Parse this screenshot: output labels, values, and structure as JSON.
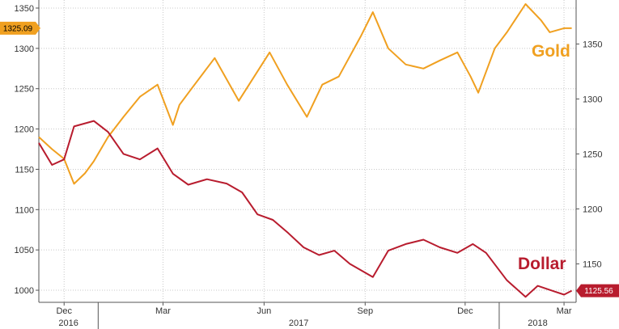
{
  "chart_data": {
    "type": "line",
    "x_ticks": [
      "Dec",
      "Mar",
      "Jun",
      "Sep",
      "Dec",
      "Mar"
    ],
    "x_years": [
      "2016",
      "2017",
      "2018"
    ],
    "left_axis": {
      "ticks": [
        "1350",
        "1300",
        "1250",
        "1200",
        "1150",
        "1100",
        "1050",
        "1000"
      ],
      "ylim": [
        985,
        1360
      ]
    },
    "right_axis": {
      "ticks": [
        "1350",
        "1300",
        "1250",
        "1200",
        "1150"
      ],
      "ylim": [
        1115,
        1390
      ]
    },
    "grid": true,
    "series": [
      {
        "name": "Gold",
        "axis": "left",
        "color": "#f0a020",
        "last_value_tag": "1325.09",
        "x": [
          "2016-11-08",
          "2016-11-20",
          "2016-12-01",
          "2016-12-10",
          "2016-12-20",
          "2016-12-28",
          "2017-01-10",
          "2017-01-24",
          "2017-02-08",
          "2017-02-24",
          "2017-03-10",
          "2017-03-16",
          "2017-03-27",
          "2017-04-17",
          "2017-05-09",
          "2017-06-06",
          "2017-06-22",
          "2017-07-10",
          "2017-07-24",
          "2017-08-08",
          "2017-08-28",
          "2017-09-08",
          "2017-09-22",
          "2017-10-08",
          "2017-10-24",
          "2017-11-08",
          "2017-11-24",
          "2017-12-06",
          "2017-12-13",
          "2017-12-28",
          "2018-01-08",
          "2018-01-25",
          "2018-02-08",
          "2018-02-16",
          "2018-03-01",
          "2018-03-08"
        ],
        "values": [
          1190,
          1175,
          1163,
          1132,
          1145,
          1160,
          1190,
          1215,
          1240,
          1255,
          1205,
          1230,
          1250,
          1288,
          1235,
          1295,
          1255,
          1215,
          1255,
          1265,
          1315,
          1345,
          1300,
          1280,
          1275,
          1285,
          1295,
          1265,
          1245,
          1300,
          1320,
          1355,
          1335,
          1320,
          1325,
          1325
        ]
      },
      {
        "name": "Dollar",
        "axis": "right",
        "color": "#b81c2e",
        "last_value_tag": "1125.56",
        "x": [
          "2016-11-08",
          "2016-11-20",
          "2016-12-01",
          "2016-12-10",
          "2016-12-28",
          "2017-01-10",
          "2017-01-24",
          "2017-02-08",
          "2017-02-24",
          "2017-03-10",
          "2017-03-24",
          "2017-04-10",
          "2017-04-28",
          "2017-05-12",
          "2017-05-26",
          "2017-06-09",
          "2017-06-23",
          "2017-07-07",
          "2017-07-21",
          "2017-08-04",
          "2017-08-18",
          "2017-09-08",
          "2017-09-22",
          "2017-10-08",
          "2017-10-24",
          "2017-11-08",
          "2017-11-24",
          "2017-12-08",
          "2017-12-20",
          "2018-01-08",
          "2018-01-25",
          "2018-02-05",
          "2018-02-20",
          "2018-03-01",
          "2018-03-08"
        ],
        "values": [
          1260,
          1240,
          1245,
          1275,
          1280,
          1270,
          1250,
          1245,
          1255,
          1232,
          1222,
          1227,
          1223,
          1215,
          1195,
          1190,
          1178,
          1165,
          1158,
          1162,
          1150,
          1138,
          1162,
          1168,
          1172,
          1165,
          1160,
          1168,
          1160,
          1135,
          1120,
          1130,
          1125,
          1122,
          1125.56
        ]
      }
    ]
  }
}
